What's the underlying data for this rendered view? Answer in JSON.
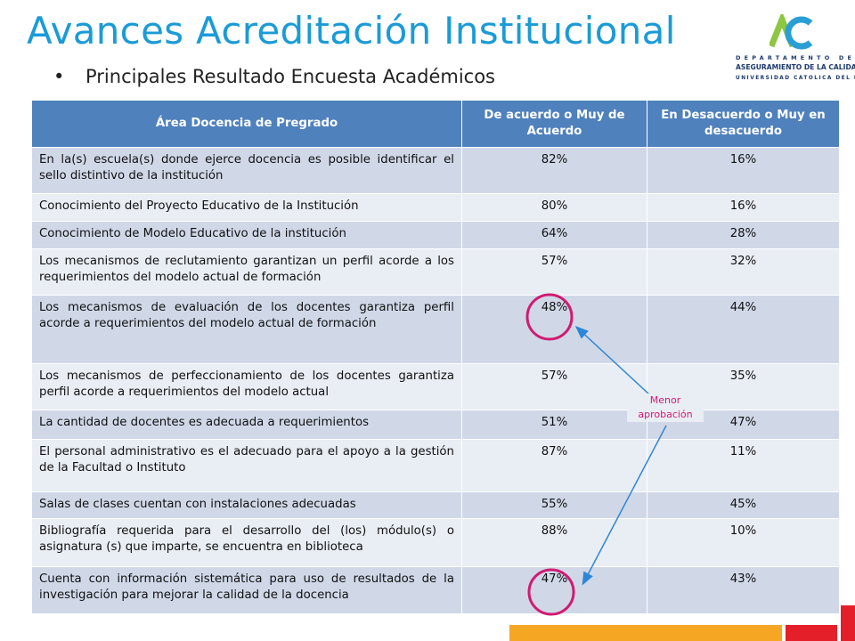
{
  "page": {
    "title": "Avances Acreditación Institucional",
    "subtitle": "Principales Resultado Encuesta Académicos"
  },
  "logo": {
    "line1": "DEPARTAMENTO DE",
    "line2": "ASEGURAMIENTO DE LA CALIDAD",
    "line3": "UNIVERSIDAD CATOLICA DEL MAULE"
  },
  "table": {
    "headers": [
      "Área Docencia de Pregrado",
      "De acuerdo o Muy de Acuerdo",
      "En Desacuerdo o Muy en desacuerdo"
    ],
    "rows": [
      {
        "item": "En la(s) escuela(s) donde ejerce docencia es posible identificar el sello distintivo de la institución",
        "agree": "82%",
        "disagree": "16%"
      },
      {
        "item": "Conocimiento del Proyecto Educativo de la Institución",
        "agree": "80%",
        "disagree": "16%"
      },
      {
        "item": "Conocimiento de Modelo Educativo de la institución",
        "agree": "64%",
        "disagree": "28%"
      },
      {
        "item": "Los mecanismos de reclutamiento garantizan un perfil acorde a los requerimientos del modelo actual de formación",
        "agree": "57%",
        "disagree": "32%"
      },
      {
        "item": "Los mecanismos de evaluación de los docentes garantiza perfil acorde a requerimientos del modelo actual de formación",
        "agree": "48%",
        "disagree": "44%"
      },
      {
        "item": "Los mecanismos de perfeccionamiento de los docentes garantiza perfil acorde a requerimientos del modelo actual",
        "agree": "57%",
        "disagree": "35%"
      },
      {
        "item": "La cantidad de docentes es adecuada a requerimientos",
        "agree": "51%",
        "disagree": "47%"
      },
      {
        "item": "El personal administrativo es el adecuado para el apoyo a la gestión de la Facultad o Instituto",
        "agree": "87%",
        "disagree": "11%"
      },
      {
        "item": "Salas de clases cuentan con instalaciones adecuadas",
        "agree": "55%",
        "disagree": "45%"
      },
      {
        "item": "Bibliografía requerida para el desarrollo del (los) módulo(s) o asignatura (s) que imparte, se encuentra en biblioteca",
        "agree": "88%",
        "disagree": "10%"
      },
      {
        "item": "Cuenta con información sistemática para uso de resultados de la investigación para mejorar la calidad de la docencia",
        "agree": "47%",
        "disagree": "43%"
      }
    ]
  },
  "annotation": {
    "note": "Menor aprobación",
    "color": "#d11a72",
    "arrow_color": "#2e86d6"
  },
  "colors": {
    "title": "#1a9bd7",
    "header_bg": "#4f81bd",
    "row_odd": "#d0d8e8",
    "row_even": "#e9edf4",
    "accent_orange": "#f5a623",
    "accent_red": "#e51f2a"
  }
}
